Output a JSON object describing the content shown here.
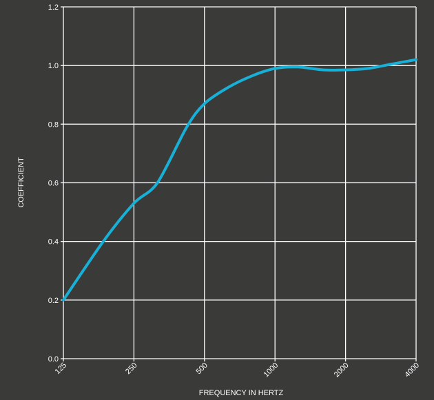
{
  "chart_data": {
    "type": "line",
    "xscale": "log",
    "xlabel": "FREQUENCY IN HERTZ",
    "ylabel": "COEFFICIENT",
    "xticks": [
      125,
      250,
      500,
      1000,
      2000,
      4000
    ],
    "xtick_labels": [
      "125",
      "250",
      "500",
      "1000",
      "2000",
      "4000"
    ],
    "yticks": [
      0.0,
      0.2,
      0.4,
      0.6,
      0.8,
      1.0,
      1.2
    ],
    "ytick_labels": [
      "0.0",
      "0.2",
      "0.4",
      "0.6",
      "0.8",
      "1.0",
      "1.2"
    ],
    "xlim": [
      125,
      4000
    ],
    "ylim": [
      0,
      1.2
    ],
    "grid": true,
    "series": [
      {
        "color": "#18b0d6",
        "x": [
          125,
          185,
          250,
          315,
          420,
          500,
          630,
          800,
          1000,
          1250,
          1600,
          2000,
          2500,
          3150,
          4000
        ],
        "y": [
          0.2,
          0.4,
          0.53,
          0.6,
          0.79,
          0.87,
          0.925,
          0.965,
          0.99,
          0.995,
          0.985,
          0.985,
          0.99,
          1.005,
          1.02
        ]
      }
    ]
  }
}
